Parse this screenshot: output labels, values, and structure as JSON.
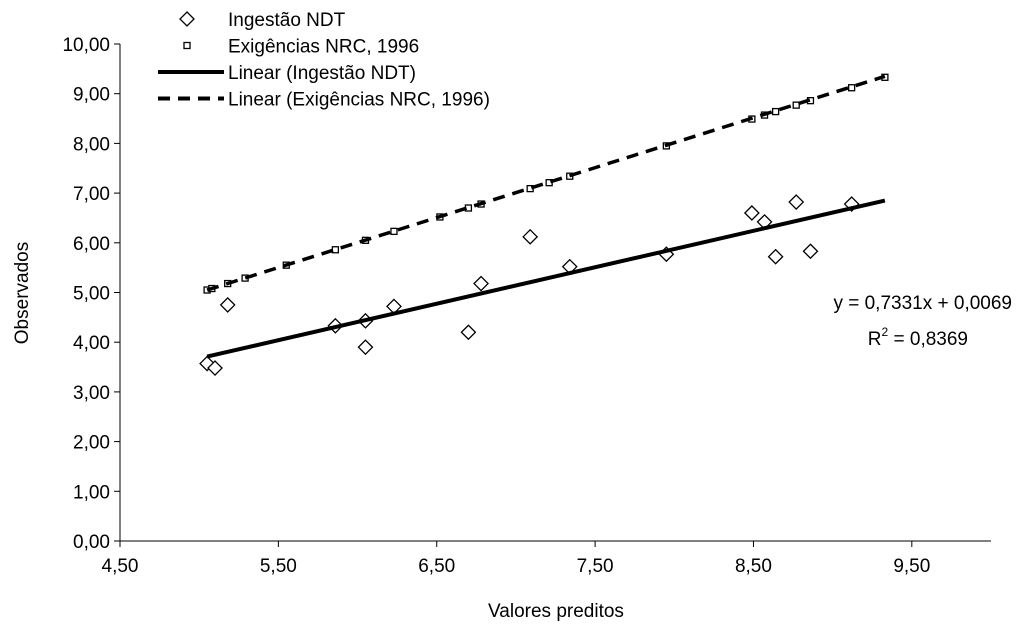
{
  "chart_data": {
    "type": "scatter",
    "xlabel": "Valores preditos",
    "ylabel": "Observados",
    "xlim": [
      4.5,
      10
    ],
    "ylim": [
      0,
      10
    ],
    "xticks": [
      {
        "value": 4.5,
        "label": "4,50"
      },
      {
        "value": 5.5,
        "label": "5,50"
      },
      {
        "value": 6.5,
        "label": "6,50"
      },
      {
        "value": 7.5,
        "label": "7,50"
      },
      {
        "value": 8.5,
        "label": "8,50"
      },
      {
        "value": 9.5,
        "label": "9,50"
      }
    ],
    "yticks": [
      {
        "value": 0,
        "label": "0,00"
      },
      {
        "value": 1,
        "label": "1,00"
      },
      {
        "value": 2,
        "label": "2,00"
      },
      {
        "value": 3,
        "label": "3,00"
      },
      {
        "value": 4,
        "label": "4,00"
      },
      {
        "value": 5,
        "label": "5,00"
      },
      {
        "value": 6,
        "label": "6,00"
      },
      {
        "value": 7,
        "label": "7,00"
      },
      {
        "value": 8,
        "label": "8,00"
      },
      {
        "value": 9,
        "label": "9,00"
      },
      {
        "value": 10,
        "label": "10,00"
      }
    ],
    "legend": "top",
    "series": [
      {
        "name": "Ingestão NDT",
        "marker": "diamond",
        "color": "#000000",
        "x": [
          5.05,
          5.1,
          5.18,
          5.86,
          6.05,
          6.05,
          6.23,
          6.7,
          6.78,
          7.09,
          7.34,
          7.95,
          8.49,
          8.57,
          8.64,
          8.77,
          8.86,
          9.12
        ],
        "values": [
          3.57,
          3.48,
          4.75,
          4.33,
          4.43,
          3.9,
          4.72,
          4.2,
          5.18,
          6.12,
          5.52,
          5.77,
          6.6,
          6.42,
          5.72,
          6.82,
          5.83,
          6.78
        ]
      },
      {
        "name": "Exigências NRC, 1996",
        "marker": "square",
        "color": "#000000",
        "x": [
          5.05,
          5.08,
          5.18,
          5.29,
          5.55,
          5.86,
          6.05,
          6.23,
          6.52,
          6.7,
          6.78,
          7.09,
          7.21,
          7.34,
          7.95,
          8.49,
          8.57,
          8.64,
          8.77,
          8.86,
          9.12,
          9.33
        ],
        "values": [
          5.05,
          5.08,
          5.18,
          5.29,
          5.55,
          5.86,
          6.05,
          6.23,
          6.52,
          6.7,
          6.78,
          7.09,
          7.21,
          7.34,
          7.95,
          8.49,
          8.57,
          8.64,
          8.77,
          8.86,
          9.12,
          9.33
        ]
      },
      {
        "name": "Linear (Ingestão NDT)",
        "marker": "solid-line",
        "color": "#000000",
        "x": [
          5.05,
          9.33
        ],
        "values": [
          3.71,
          6.85
        ]
      },
      {
        "name": "Linear (Exigências NRC, 1996)",
        "marker": "dashed-line",
        "color": "#000000",
        "x": [
          5.05,
          9.33
        ],
        "values": [
          5.05,
          9.35
        ]
      }
    ],
    "annotation": {
      "equation": "y = 0,7331x + 0,0069",
      "r2_label": "R",
      "r2_sup": "2",
      "r2_value": " = 0,8369"
    }
  }
}
